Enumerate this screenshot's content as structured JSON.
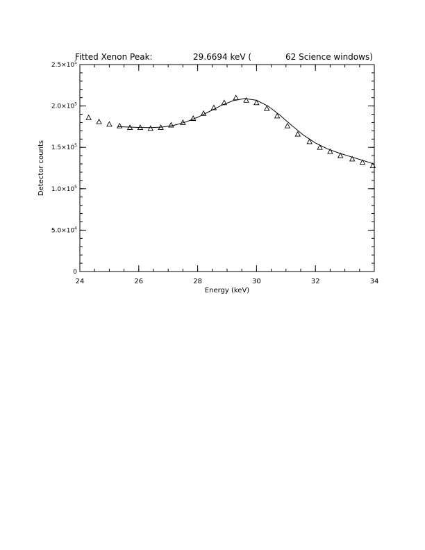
{
  "chart_data": {
    "type": "scatter",
    "title_parts": {
      "label": "Fitted Xenon Peak:",
      "value": "29.6694 keV (",
      "windows": "62 Science windows)"
    },
    "xlabel": "Energy (keV)",
    "ylabel": "Detector counts",
    "xlim": [
      24,
      34
    ],
    "ylim": [
      0,
      250000
    ],
    "x_ticks": [
      {
        "value": 24,
        "label": "24"
      },
      {
        "value": 26,
        "label": "26"
      },
      {
        "value": 28,
        "label": "28"
      },
      {
        "value": 30,
        "label": "30"
      },
      {
        "value": 32,
        "label": "32"
      },
      {
        "value": 34,
        "label": "34"
      }
    ],
    "y_ticks": [
      {
        "value": 0,
        "mant": "0",
        "exp": ""
      },
      {
        "value": 50000,
        "mant": "5.0×10",
        "exp": "4"
      },
      {
        "value": 100000,
        "mant": "1.0×10",
        "exp": "5"
      },
      {
        "value": 150000,
        "mant": "1.5×10",
        "exp": "5"
      },
      {
        "value": 200000,
        "mant": "2.0×10",
        "exp": "5"
      },
      {
        "value": 250000,
        "mant": "2.5×10",
        "exp": "5"
      }
    ],
    "x_minor_step": 0.5,
    "y_minor_step": 10000,
    "grid": false,
    "marker": "open-triangle",
    "series": [
      {
        "points": [
          [
            24.3,
            186000
          ],
          [
            24.65,
            181000
          ],
          [
            25.0,
            178000
          ],
          [
            25.35,
            176000
          ],
          [
            25.7,
            174000
          ],
          [
            26.05,
            174000
          ],
          [
            26.4,
            173000
          ],
          [
            26.75,
            174000
          ],
          [
            27.1,
            177000
          ],
          [
            27.5,
            180000
          ],
          [
            27.85,
            185000
          ],
          [
            28.2,
            191000
          ],
          [
            28.55,
            198000
          ],
          [
            28.9,
            204000
          ],
          [
            29.3,
            210000
          ],
          [
            29.65,
            207000
          ],
          [
            30.0,
            204000
          ],
          [
            30.35,
            197000
          ],
          [
            30.7,
            188000
          ],
          [
            31.05,
            176000
          ],
          [
            31.4,
            166000
          ],
          [
            31.8,
            157000
          ],
          [
            32.15,
            150000
          ],
          [
            32.5,
            145000
          ],
          [
            32.85,
            140000
          ],
          [
            33.25,
            136000
          ],
          [
            33.6,
            132000
          ],
          [
            33.95,
            128000
          ]
        ]
      },
      {
        "curve": [
          [
            25.3,
            175000
          ],
          [
            25.6,
            174600
          ],
          [
            26.0,
            174100
          ],
          [
            26.4,
            173900
          ],
          [
            26.8,
            174500
          ],
          [
            27.2,
            176700
          ],
          [
            27.6,
            180600
          ],
          [
            28.0,
            186300
          ],
          [
            28.4,
            193400
          ],
          [
            28.8,
            200600
          ],
          [
            29.2,
            206400
          ],
          [
            29.6,
            209000
          ],
          [
            30.0,
            206900
          ],
          [
            30.4,
            199700
          ],
          [
            30.8,
            188800
          ],
          [
            31.2,
            176300
          ],
          [
            31.6,
            164700
          ],
          [
            32.0,
            155300
          ],
          [
            32.4,
            148300
          ],
          [
            32.8,
            143100
          ],
          [
            33.2,
            138700
          ],
          [
            33.6,
            134400
          ],
          [
            34.0,
            129800
          ]
        ]
      }
    ]
  }
}
